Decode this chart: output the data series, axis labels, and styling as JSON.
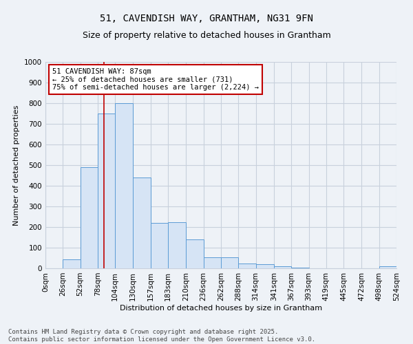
{
  "title": "51, CAVENDISH WAY, GRANTHAM, NG31 9FN",
  "subtitle": "Size of property relative to detached houses in Grantham",
  "xlabel": "Distribution of detached houses by size in Grantham",
  "ylabel": "Number of detached properties",
  "property_label": "51 CAVENDISH WAY: 87sqm",
  "annotation_line1": "← 25% of detached houses are smaller (731)",
  "annotation_line2": "75% of semi-detached houses are larger (2,224) →",
  "footer1": "Contains HM Land Registry data © Crown copyright and database right 2025.",
  "footer2": "Contains public sector information licensed under the Open Government Licence v3.0.",
  "bin_edges": [
    0,
    26,
    52,
    78,
    104,
    130,
    157,
    183,
    210,
    236,
    262,
    288,
    314,
    341,
    367,
    393,
    419,
    445,
    472,
    498,
    524
  ],
  "bar_heights": [
    0,
    45,
    490,
    750,
    800,
    440,
    220,
    225,
    140,
    55,
    55,
    25,
    20,
    10,
    5,
    0,
    0,
    0,
    0,
    10
  ],
  "bar_color": "#d6e4f5",
  "bar_edge_color": "#5b9bd5",
  "vline_x": 87,
  "vline_color": "#c00000",
  "annotation_box_color": "#c00000",
  "ylim": [
    0,
    1000
  ],
  "yticks": [
    0,
    100,
    200,
    300,
    400,
    500,
    600,
    700,
    800,
    900,
    1000
  ],
  "background_color": "#eef2f7",
  "plot_bg_color": "#eef2f7",
  "grid_color": "#c8d0dc",
  "title_fontsize": 10,
  "subtitle_fontsize": 9,
  "axis_label_fontsize": 8,
  "tick_fontsize": 7.5,
  "annotation_fontsize": 7.5,
  "footer_fontsize": 6.5
}
